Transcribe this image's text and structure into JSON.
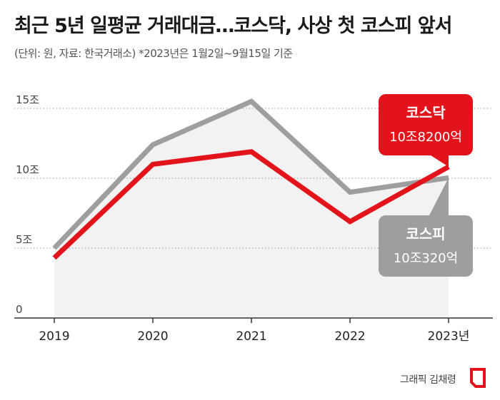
{
  "header": {
    "title": "최근 5년 일평균 거래대금…코스닥, 사상 첫 코스피 앞서",
    "subtitle": "(단위: 원, 자료: 한국거래소)  *2023년은 1월2일~9월15일 기준"
  },
  "footer": {
    "credit": "그래픽 김채령"
  },
  "chart_data": {
    "type": "line",
    "x": [
      "2019",
      "2020",
      "2021",
      "2022",
      "2023년"
    ],
    "y_ticks": [
      "0",
      "5조",
      "10조",
      "15조"
    ],
    "ylim": [
      0,
      15
    ],
    "grid": true,
    "series": [
      {
        "name": "코스피",
        "values": [
          5.0,
          12.4,
          15.5,
          9.0,
          10.032
        ],
        "color": "#9e9e9e",
        "callout": {
          "label": "코스피",
          "value": "10조320억"
        }
      },
      {
        "name": "코스닥",
        "values": [
          4.3,
          11.0,
          11.9,
          6.9,
          10.82
        ],
        "color": "#e3131b",
        "callout": {
          "label": "코스닥",
          "value": "10조8200억"
        }
      }
    ],
    "area_fill": "#f2f2f2"
  }
}
